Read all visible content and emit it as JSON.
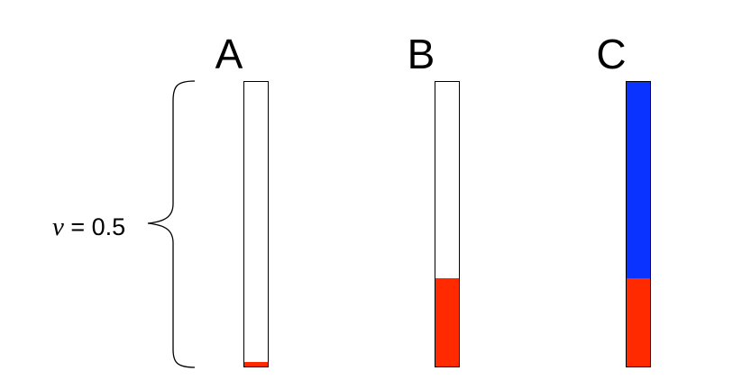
{
  "columns": [
    {
      "label": "A",
      "red_fraction": 0.016,
      "blue_fraction": 0.0
    },
    {
      "label": "B",
      "red_fraction": 0.31,
      "blue_fraction": 0.0
    },
    {
      "label": "C",
      "red_fraction": 0.31,
      "blue_fraction": 0.69
    }
  ],
  "brace": {
    "variable": "v",
    "equals_value": " = 0.5"
  },
  "colors": {
    "red": "#ff2a00",
    "blue": "#0a33ff",
    "outline": "#000000"
  }
}
